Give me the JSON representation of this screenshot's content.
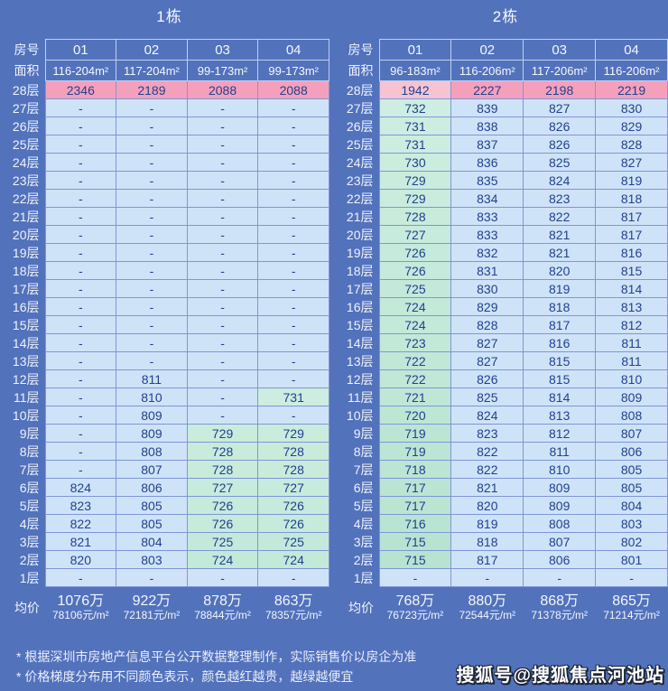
{
  "palette": {
    "background": "#5272bc",
    "cell_blue": "#cfe3f8",
    "cell_green_low": "#b7e2d0",
    "cell_green_high": "#cdeee0",
    "cell_pink": "#f4a0bc",
    "cell_pink_light": "#f6c3d2",
    "cell_text": "#21418f",
    "header_text": "#f3f7ff",
    "grid_border": "#7e96d6",
    "header_border": "#c3cfea"
  },
  "labels": {
    "room": "房号",
    "area": "面积",
    "avg": "均价"
  },
  "buildings": [
    {
      "title": "1栋",
      "rooms": [
        "01",
        "02",
        "03",
        "04"
      ],
      "areas": [
        "116-204m²",
        "117-204m²",
        "99-173m²",
        "99-173m²"
      ],
      "floors": [
        {
          "floor": "28层",
          "values": [
            "2346",
            "2189",
            "2088",
            "2088"
          ]
        },
        {
          "floor": "27层",
          "values": [
            "-",
            "-",
            "-",
            "-"
          ]
        },
        {
          "floor": "26层",
          "values": [
            "-",
            "-",
            "-",
            "-"
          ]
        },
        {
          "floor": "25层",
          "values": [
            "-",
            "-",
            "-",
            "-"
          ]
        },
        {
          "floor": "24层",
          "values": [
            "-",
            "-",
            "-",
            "-"
          ]
        },
        {
          "floor": "23层",
          "values": [
            "-",
            "-",
            "-",
            "-"
          ]
        },
        {
          "floor": "22层",
          "values": [
            "-",
            "-",
            "-",
            "-"
          ]
        },
        {
          "floor": "21层",
          "values": [
            "-",
            "-",
            "-",
            "-"
          ]
        },
        {
          "floor": "20层",
          "values": [
            "-",
            "-",
            "-",
            "-"
          ]
        },
        {
          "floor": "19层",
          "values": [
            "-",
            "-",
            "-",
            "-"
          ]
        },
        {
          "floor": "18层",
          "values": [
            "-",
            "-",
            "-",
            "-"
          ]
        },
        {
          "floor": "17层",
          "values": [
            "-",
            "-",
            "-",
            "-"
          ]
        },
        {
          "floor": "16层",
          "values": [
            "-",
            "-",
            "-",
            "-"
          ]
        },
        {
          "floor": "15层",
          "values": [
            "-",
            "-",
            "-",
            "-"
          ]
        },
        {
          "floor": "14层",
          "values": [
            "-",
            "-",
            "-",
            "-"
          ]
        },
        {
          "floor": "13层",
          "values": [
            "-",
            "-",
            "-",
            "-"
          ]
        },
        {
          "floor": "12层",
          "values": [
            "-",
            "811",
            "-",
            "-"
          ]
        },
        {
          "floor": "11层",
          "values": [
            "-",
            "810",
            "-",
            "731"
          ]
        },
        {
          "floor": "10层",
          "values": [
            "-",
            "809",
            "-",
            "-"
          ]
        },
        {
          "floor": "9层",
          "values": [
            "-",
            "809",
            "729",
            "729"
          ]
        },
        {
          "floor": "8层",
          "values": [
            "-",
            "808",
            "728",
            "728"
          ]
        },
        {
          "floor": "7层",
          "values": [
            "-",
            "807",
            "728",
            "728"
          ]
        },
        {
          "floor": "6层",
          "values": [
            "824",
            "806",
            "727",
            "727"
          ]
        },
        {
          "floor": "5层",
          "values": [
            "823",
            "805",
            "726",
            "726"
          ]
        },
        {
          "floor": "4层",
          "values": [
            "822",
            "805",
            "726",
            "726"
          ]
        },
        {
          "floor": "3层",
          "values": [
            "821",
            "804",
            "725",
            "725"
          ]
        },
        {
          "floor": "2层",
          "values": [
            "820",
            "803",
            "724",
            "724"
          ]
        },
        {
          "floor": "1层",
          "values": [
            "-",
            "-",
            "-",
            "-"
          ]
        }
      ],
      "avg": [
        {
          "wan": "1076万",
          "per": "78106元/m²"
        },
        {
          "wan": "922万",
          "per": "72181元/m²"
        },
        {
          "wan": "878万",
          "per": "78844元/m²"
        },
        {
          "wan": "863万",
          "per": "78357元/m²"
        }
      ]
    },
    {
      "title": "2栋",
      "rooms": [
        "01",
        "02",
        "03",
        "04"
      ],
      "areas": [
        "96-183m²",
        "116-206m²",
        "117-206m²",
        "116-206m²"
      ],
      "floors": [
        {
          "floor": "28层",
          "values": [
            "1942",
            "2227",
            "2198",
            "2219"
          ]
        },
        {
          "floor": "27层",
          "values": [
            "732",
            "839",
            "827",
            "830"
          ]
        },
        {
          "floor": "26层",
          "values": [
            "731",
            "838",
            "826",
            "829"
          ]
        },
        {
          "floor": "25层",
          "values": [
            "731",
            "837",
            "826",
            "828"
          ]
        },
        {
          "floor": "24层",
          "values": [
            "730",
            "836",
            "825",
            "827"
          ]
        },
        {
          "floor": "23层",
          "values": [
            "729",
            "835",
            "824",
            "819"
          ]
        },
        {
          "floor": "22层",
          "values": [
            "729",
            "834",
            "823",
            "818"
          ]
        },
        {
          "floor": "21层",
          "values": [
            "728",
            "833",
            "822",
            "817"
          ]
        },
        {
          "floor": "20层",
          "values": [
            "727",
            "833",
            "821",
            "817"
          ]
        },
        {
          "floor": "19层",
          "values": [
            "726",
            "832",
            "821",
            "816"
          ]
        },
        {
          "floor": "18层",
          "values": [
            "726",
            "831",
            "820",
            "815"
          ]
        },
        {
          "floor": "17层",
          "values": [
            "725",
            "830",
            "819",
            "814"
          ]
        },
        {
          "floor": "16层",
          "values": [
            "724",
            "829",
            "818",
            "813"
          ]
        },
        {
          "floor": "15层",
          "values": [
            "724",
            "828",
            "817",
            "812"
          ]
        },
        {
          "floor": "14层",
          "values": [
            "723",
            "827",
            "816",
            "811"
          ]
        },
        {
          "floor": "13层",
          "values": [
            "722",
            "827",
            "815",
            "811"
          ]
        },
        {
          "floor": "12层",
          "values": [
            "722",
            "826",
            "815",
            "810"
          ]
        },
        {
          "floor": "11层",
          "values": [
            "721",
            "825",
            "814",
            "809"
          ]
        },
        {
          "floor": "10层",
          "values": [
            "720",
            "824",
            "813",
            "808"
          ]
        },
        {
          "floor": "9层",
          "values": [
            "719",
            "823",
            "812",
            "807"
          ]
        },
        {
          "floor": "8层",
          "values": [
            "719",
            "822",
            "811",
            "806"
          ]
        },
        {
          "floor": "7层",
          "values": [
            "718",
            "822",
            "810",
            "805"
          ]
        },
        {
          "floor": "6层",
          "values": [
            "717",
            "821",
            "809",
            "805"
          ]
        },
        {
          "floor": "5层",
          "values": [
            "717",
            "820",
            "809",
            "804"
          ]
        },
        {
          "floor": "4层",
          "values": [
            "716",
            "819",
            "808",
            "803"
          ]
        },
        {
          "floor": "3层",
          "values": [
            "715",
            "818",
            "807",
            "802"
          ]
        },
        {
          "floor": "2层",
          "values": [
            "715",
            "817",
            "806",
            "801"
          ]
        },
        {
          "floor": "1层",
          "values": [
            "-",
            "-",
            "-",
            "-"
          ]
        }
      ],
      "avg": [
        {
          "wan": "768万",
          "per": "76723元/m²"
        },
        {
          "wan": "880万",
          "per": "72544元/m²"
        },
        {
          "wan": "868万",
          "per": "71378元/m²"
        },
        {
          "wan": "865万",
          "per": "71214元/m²"
        }
      ]
    }
  ],
  "footnotes": [
    "* 根据深圳市房地产信息平台公开数据整理制作，实际销售价以房企为准",
    "* 价格梯度分布用不同颜色表示，颜色越红越贵，越绿越便宜"
  ],
  "watermark": "搜狐号@搜狐焦点河池站"
}
